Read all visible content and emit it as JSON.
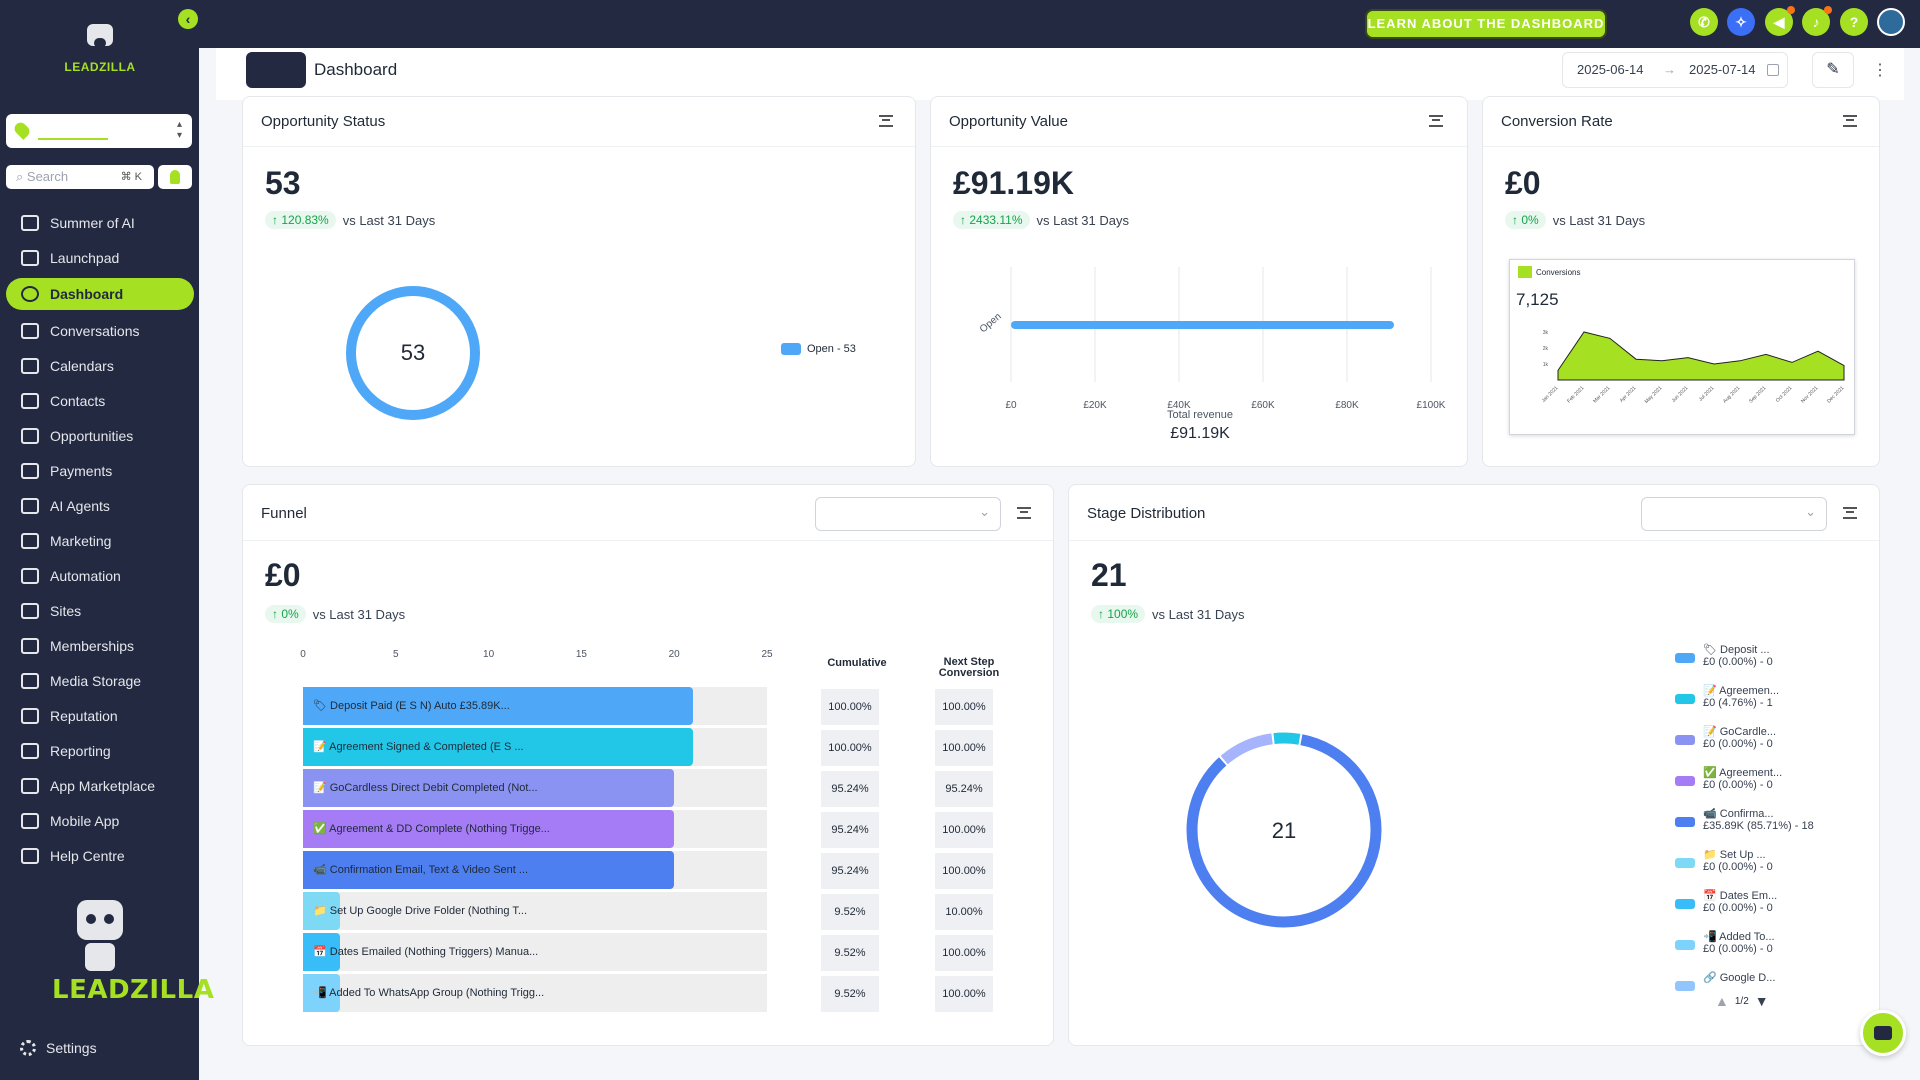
{
  "sidebar": {
    "brand": "LEADZILLA",
    "search_placeholder": "Search",
    "search_shortcut": "⌘ K",
    "items": [
      {
        "label": "Summer of AI",
        "icon": "sparkle-icon"
      },
      {
        "label": "Launchpad",
        "icon": "rocket-icon"
      },
      {
        "label": "Dashboard",
        "icon": "dashboard-icon",
        "active": true
      },
      {
        "label": "Conversations",
        "icon": "chat-icon"
      },
      {
        "label": "Calendars",
        "icon": "calendar-icon"
      },
      {
        "label": "Contacts",
        "icon": "contacts-icon"
      },
      {
        "label": "Opportunities",
        "icon": "opportunities-icon"
      },
      {
        "label": "Payments",
        "icon": "payments-icon"
      },
      {
        "label": "AI Agents",
        "icon": "ai-agent-icon"
      },
      {
        "label": "Marketing",
        "icon": "mail-icon"
      },
      {
        "label": "Automation",
        "icon": "automation-icon"
      },
      {
        "label": "Sites",
        "icon": "sites-icon"
      },
      {
        "label": "Memberships",
        "icon": "membership-icon"
      },
      {
        "label": "Media Storage",
        "icon": "image-icon"
      },
      {
        "label": "Reputation",
        "icon": "smile-icon"
      },
      {
        "label": "Reporting",
        "icon": "bar-chart-icon"
      },
      {
        "label": "App Marketplace",
        "icon": "briefcase-icon"
      },
      {
        "label": "Mobile App",
        "icon": "mobile-icon"
      },
      {
        "label": "Help Centre",
        "icon": "graduation-icon"
      }
    ],
    "settings_label": "Settings"
  },
  "topbar": {
    "learn_button": "LEARN ABOUT THE DASHBOARD",
    "accent": "#a6e022",
    "bg": "#222941"
  },
  "header": {
    "title": "Dashboard",
    "date_from": "2025-06-14",
    "date_to": "2025-07-14"
  },
  "opportunity_status": {
    "title": "Opportunity Status",
    "value": "53",
    "delta": "120.83%",
    "delta_label": "vs Last 31 Days",
    "donut_center": "53",
    "legend": "Open - 53"
  },
  "opportunity_value": {
    "title": "Opportunity Value",
    "value": "£91.19K",
    "delta": "2433.11%",
    "delta_label": "vs Last 31 Days",
    "y_label": "Open",
    "x_ticks": [
      "£0",
      "£20K",
      "£40K",
      "£60K",
      "£80K",
      "£100K"
    ],
    "bar_value": 91.19,
    "x_max": 100,
    "total_label": "Total revenue",
    "total_value": "£91.19K"
  },
  "conversion_rate": {
    "title": "Conversion Rate",
    "value": "£0",
    "delta": "0%",
    "delta_label": "vs Last 31 Days",
    "mini_chart": {
      "legend": "Conversions",
      "headline": "7,125",
      "months": [
        "Jan 2021",
        "Feb 2021",
        "Mar 2021",
        "Apr 2021",
        "May 2021",
        "Jun 2021",
        "Jul 2021",
        "Aug 2021",
        "Sep 2021",
        "Oct 2021",
        "Nov 2021",
        "Dec 2021"
      ],
      "values": [
        0.6,
        3.0,
        2.6,
        1.3,
        1.2,
        1.4,
        1.0,
        1.2,
        1.6,
        1.1,
        1.8,
        0.9
      ],
      "y_ticks": [
        "1k",
        "2k",
        "3k"
      ]
    }
  },
  "funnel": {
    "title": "Funnel",
    "value": "£0",
    "delta": "0%",
    "delta_label": "vs Last 31 Days",
    "x_ticks": [
      "0",
      "5",
      "10",
      "15",
      "20",
      "25"
    ],
    "cumulative_header": "Cumulative",
    "next_step_header": "Next Step Conversion",
    "rows": [
      {
        "label": "Deposit Paid (E  S   N) Auto   £35.89K...",
        "icon": "🏷",
        "value": 21,
        "color": "#4fa8f7",
        "cumulative": "100.00%",
        "next": "100.00%"
      },
      {
        "label": "Agreement Signed & Completed (E   S    ...",
        "icon": "📝",
        "value": 21,
        "color": "#22c7e8",
        "cumulative": "100.00%",
        "next": "100.00%"
      },
      {
        "label": "GoCardless Direct Debit Completed (Not...",
        "icon": "📝",
        "value": 20,
        "color": "#8b93f2",
        "cumulative": "95.24%",
        "next": "95.24%"
      },
      {
        "label": "Agreement & DD Complete (Nothing Trigge...",
        "icon": "✅",
        "value": 20,
        "color": "#a57cf5",
        "cumulative": "95.24%",
        "next": "100.00%"
      },
      {
        "label": "Confirmation Email, Text & Video Sent ...",
        "icon": "📹",
        "value": 20,
        "color": "#4d7ff0",
        "cumulative": "95.24%",
        "next": "100.00%"
      },
      {
        "label": "Set Up Google Drive Folder (Nothing T...",
        "icon": "📁",
        "value": 2,
        "color": "#7ed9f5",
        "cumulative": "9.52%",
        "next": "10.00%"
      },
      {
        "label": "Dates Emailed (Nothing Triggers) Manua...",
        "icon": "📅",
        "value": 2,
        "color": "#38bdf8",
        "cumulative": "9.52%",
        "next": "100.00%"
      },
      {
        "label": "Added To WhatsApp Group (Nothing Trigg...",
        "icon": "📲",
        "value": 2,
        "color": "#7dd3fc",
        "cumulative": "9.52%",
        "next": "100.00%"
      }
    ],
    "max": 25
  },
  "stage_distribution": {
    "title": "Stage Distribution",
    "value": "21",
    "delta": "100%",
    "delta_label": "vs Last 31 Days",
    "donut_center": "21",
    "segments": [
      {
        "value": 18,
        "color": "#4d7ff0"
      },
      {
        "value": 2,
        "color": "#a5b4fc"
      },
      {
        "value": 1,
        "color": "#22c7e8"
      }
    ],
    "legend": [
      {
        "name": "Deposit ...",
        "detail": "£0 (0.00%) - 0",
        "color": "#4fa8f7",
        "icon": "🏷"
      },
      {
        "name": "Agreemen...",
        "detail": "£0 (4.76%) - 1",
        "color": "#22c7e8",
        "icon": "📝"
      },
      {
        "name": "GoCardle...",
        "detail": "£0 (0.00%) - 0",
        "color": "#8b93f2",
        "icon": "📝"
      },
      {
        "name": "Agreement...",
        "detail": "£0 (0.00%) - 0",
        "color": "#a57cf5",
        "icon": "✅"
      },
      {
        "name": "Confirma...",
        "detail": "£35.89K (85.71%) - 18",
        "color": "#4d7ff0",
        "icon": "📹"
      },
      {
        "name": "Set Up ...",
        "detail": "£0 (0.00%) - 0",
        "color": "#7ed9f5",
        "icon": "📁"
      },
      {
        "name": "Dates Em...",
        "detail": "£0 (0.00%) - 0",
        "color": "#38bdf8",
        "icon": "📅"
      },
      {
        "name": "Added To...",
        "detail": "£0 (0.00%) - 0",
        "color": "#7dd3fc",
        "icon": "📲"
      },
      {
        "name": "Google D...",
        "detail": "",
        "color": "#93c5fd",
        "icon": "🔗"
      }
    ],
    "pager": "1/2"
  }
}
